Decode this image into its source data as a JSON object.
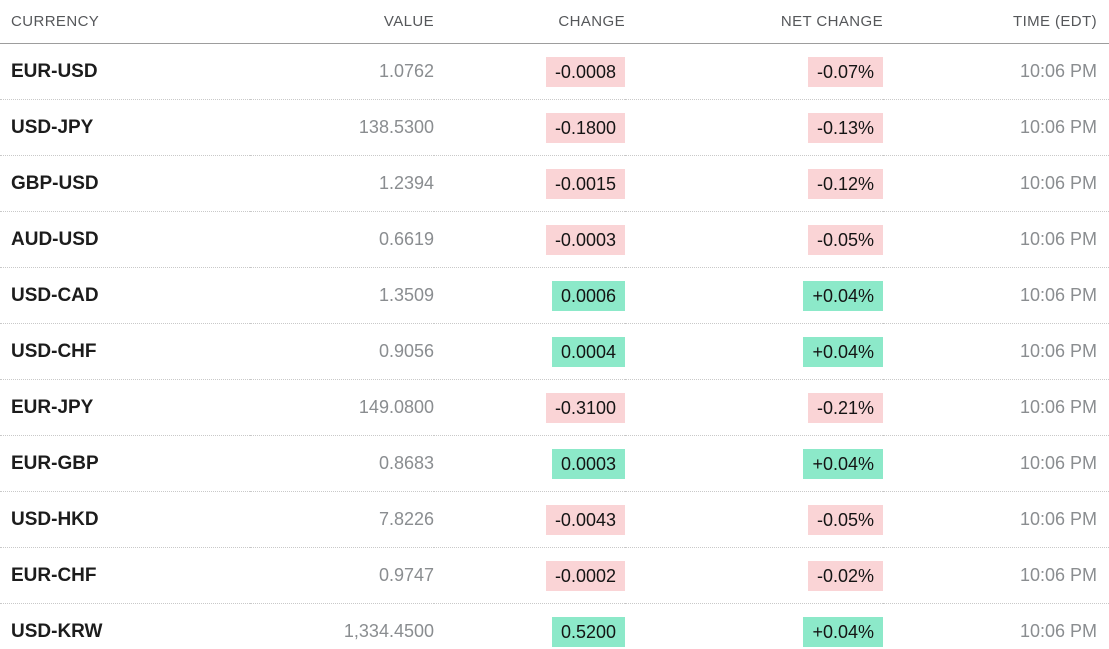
{
  "table": {
    "columns": [
      {
        "key": "currency",
        "label": "CURRENCY"
      },
      {
        "key": "value",
        "label": "VALUE"
      },
      {
        "key": "change",
        "label": "CHANGE"
      },
      {
        "key": "net_change",
        "label": "NET CHANGE"
      },
      {
        "key": "time",
        "label": "TIME (EDT)"
      }
    ],
    "rows": [
      {
        "currency": "EUR-USD",
        "value": "1.0762",
        "change": "-0.0008",
        "net_change": "-0.07%",
        "time": "10:06 PM",
        "direction": "down"
      },
      {
        "currency": "USD-JPY",
        "value": "138.5300",
        "change": "-0.1800",
        "net_change": "-0.13%",
        "time": "10:06 PM",
        "direction": "down"
      },
      {
        "currency": "GBP-USD",
        "value": "1.2394",
        "change": "-0.0015",
        "net_change": "-0.12%",
        "time": "10:06 PM",
        "direction": "down"
      },
      {
        "currency": "AUD-USD",
        "value": "0.6619",
        "change": "-0.0003",
        "net_change": "-0.05%",
        "time": "10:06 PM",
        "direction": "down"
      },
      {
        "currency": "USD-CAD",
        "value": "1.3509",
        "change": "0.0006",
        "net_change": "+0.04%",
        "time": "10:06 PM",
        "direction": "up"
      },
      {
        "currency": "USD-CHF",
        "value": "0.9056",
        "change": "0.0004",
        "net_change": "+0.04%",
        "time": "10:06 PM",
        "direction": "up"
      },
      {
        "currency": "EUR-JPY",
        "value": "149.0800",
        "change": "-0.3100",
        "net_change": "-0.21%",
        "time": "10:06 PM",
        "direction": "down"
      },
      {
        "currency": "EUR-GBP",
        "value": "0.8683",
        "change": "0.0003",
        "net_change": "+0.04%",
        "time": "10:06 PM",
        "direction": "up"
      },
      {
        "currency": "USD-HKD",
        "value": "7.8226",
        "change": "-0.0043",
        "net_change": "-0.05%",
        "time": "10:06 PM",
        "direction": "down"
      },
      {
        "currency": "EUR-CHF",
        "value": "0.9747",
        "change": "-0.0002",
        "net_change": "-0.02%",
        "time": "10:06 PM",
        "direction": "down"
      },
      {
        "currency": "USD-KRW",
        "value": "1,334.4500",
        "change": "0.5200",
        "net_change": "+0.04%",
        "time": "10:06 PM",
        "direction": "up"
      }
    ]
  },
  "colors": {
    "positive_bg": "#8ce9c9",
    "negative_bg": "#fad4d6",
    "header_text": "#55575a",
    "currency_text": "#1c1c1c",
    "muted_text": "#8a8d90",
    "badge_text": "#141414",
    "header_rule": "#9d9d9d",
    "row_rule": "#c9c9c9"
  }
}
